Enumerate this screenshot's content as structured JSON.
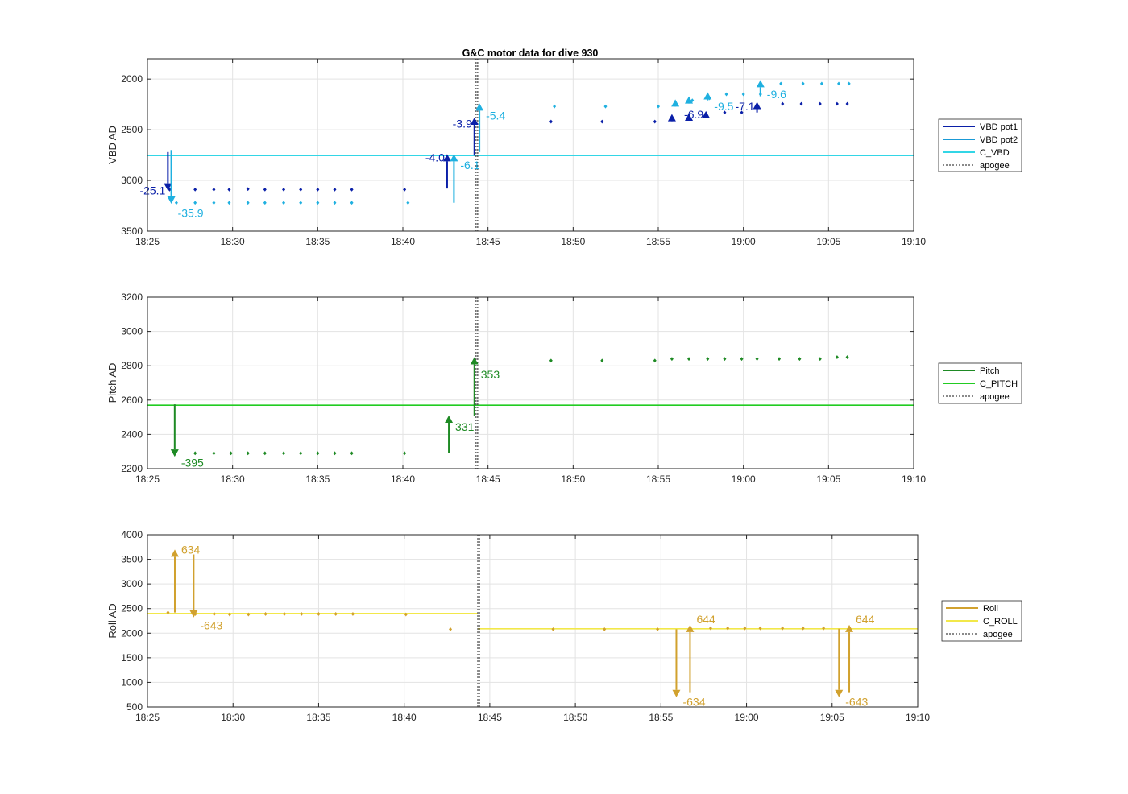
{
  "figure": {
    "title": "G&C motor data for dive 930"
  },
  "chart_data": [
    {
      "type": "scatter",
      "id": "vbd",
      "ylabel": "VBD AD",
      "ylim": [
        2000,
        3500
      ],
      "reverse_y": true,
      "y_extra_top": 1800,
      "yticks": [
        2000,
        2500,
        3000,
        3500
      ],
      "ytick_labels": [
        "2000",
        "2500",
        "3000",
        "3500"
      ],
      "xlim": [
        "18:25",
        "19:10"
      ],
      "xticks": [
        "18:25",
        "18:30",
        "18:35",
        "18:40",
        "18:45",
        "18:50",
        "18:55",
        "19:00",
        "19:05",
        "19:10"
      ],
      "grid": true,
      "legend": {
        "placement": "outside-right",
        "entries": [
          {
            "label": "VBD pot1",
            "color": "#0a1fa8",
            "style": "solid"
          },
          {
            "label": "VBD pot2",
            "color": "#1a9ad6",
            "style": "solid"
          },
          {
            "label": "C_VBD",
            "color": "#33d6e6",
            "style": "solid"
          },
          {
            "label": "apogee",
            "color": "#444444",
            "style": "dotted"
          }
        ]
      },
      "hlines": [
        {
          "y": 2755,
          "color": "#33d6e6"
        }
      ],
      "apogee_x": "18:44.3",
      "series": [
        {
          "name": "VBD pot1",
          "color": "#0a1fa8",
          "x": [
            "18:26.3",
            "18:27.8",
            "18:28.9",
            "18:29.8",
            "18:30.9",
            "18:31.9",
            "18:33.0",
            "18:34.0",
            "18:35.0",
            "18:36.0",
            "18:37.0",
            "18:40.1",
            "18:48.7",
            "18:51.7",
            "18:54.8",
            "18:55.8",
            "18:56.8",
            "18:57.8",
            "18:58.9",
            "18:59.9",
            "19:00.8",
            "19:02.3",
            "19:03.4",
            "19:04.5",
            "19:05.5",
            "19:06.1"
          ],
          "y": [
            3090,
            3090,
            3090,
            3090,
            3085,
            3090,
            3090,
            3090,
            3090,
            3090,
            3090,
            3090,
            2420,
            2420,
            2420,
            2380,
            2360,
            2340,
            2330,
            2330,
            2255,
            2245,
            2245,
            2245,
            2245,
            2245
          ]
        },
        {
          "name": "VBD pot2",
          "color": "#1fb0e0",
          "x": [
            "18:26.7",
            "18:27.8",
            "18:28.9",
            "18:29.8",
            "18:30.9",
            "18:31.9",
            "18:33.0",
            "18:34.0",
            "18:35.0",
            "18:36.0",
            "18:37.0",
            "18:40.3",
            "18:48.9",
            "18:51.9",
            "18:55.0",
            "18:56.0",
            "18:57.0",
            "18:58.0",
            "18:59.0",
            "19:00.0",
            "19:01.0",
            "19:02.2",
            "19:03.5",
            "19:04.6",
            "19:05.6",
            "19:06.2"
          ],
          "y": [
            3220,
            3220,
            3220,
            3220,
            3220,
            3220,
            3220,
            3220,
            3220,
            3220,
            3220,
            3220,
            2270,
            2270,
            2270,
            2230,
            2210,
            2190,
            2150,
            2150,
            2150,
            2045,
            2045,
            2045,
            2045,
            2045
          ]
        }
      ],
      "arrows": [
        {
          "x": "18:26.2",
          "from": 2720,
          "to": 3100,
          "color": "#0a1fa8",
          "label": "-25.1",
          "label_side": "left",
          "label_y": 3100
        },
        {
          "x": "18:26.4",
          "from": 2700,
          "to": 3230,
          "color": "#1fb0e0",
          "label": "-35.9",
          "label_side": "right",
          "label_y": 3320
        },
        {
          "x": "18:42.6",
          "from": 3080,
          "to": 2740,
          "color": "#0a1fa8",
          "label": "-4.0",
          "label_side": "left",
          "label_y": 2775
        },
        {
          "x": "18:43.0",
          "from": 3220,
          "to": 2740,
          "color": "#1fb0e0",
          "label": "-6.1",
          "label_side": "right",
          "label_y": 2850
        },
        {
          "x": "18:44.2",
          "from": 2755,
          "to": 2380,
          "color": "#0a1fa8",
          "label": "-3.9",
          "label_side": "left",
          "label_y": 2440
        },
        {
          "x": "18:44.5",
          "from": 2720,
          "to": 2240,
          "color": "#1fb0e0",
          "label": "-5.4",
          "label_side": "right",
          "label_y": 2360
        },
        {
          "x": "18:55.8",
          "from": 2385,
          "to": 2345,
          "color": "#0a1fa8",
          "label": "",
          "label_side": "none",
          "label_y": 0
        },
        {
          "x": "18:56.8",
          "from": 2385,
          "to": 2340,
          "color": "#0a1fa8",
          "label": "",
          "label_side": "none",
          "label_y": 0
        },
        {
          "x": "18:57.8",
          "from": 2360,
          "to": 2315,
          "color": "#0a1fa8",
          "label": "-6.9",
          "label_side": "left",
          "label_y": 2350
        },
        {
          "x": "19:00.8",
          "from": 2330,
          "to": 2225,
          "color": "#0a1fa8",
          "label": "-7.1",
          "label_side": "left",
          "label_y": 2270
        },
        {
          "x": "18:56.0",
          "from": 2250,
          "to": 2200,
          "color": "#1fb0e0",
          "label": "",
          "label_side": "none",
          "label_y": 0
        },
        {
          "x": "18:56.8",
          "from": 2235,
          "to": 2170,
          "color": "#1fb0e0",
          "label": "",
          "label_side": "none",
          "label_y": 0
        },
        {
          "x": "18:57.9",
          "from": 2210,
          "to": 2130,
          "color": "#1fb0e0",
          "label": "-9.5",
          "label_side": "right",
          "label_y": 2270
        },
        {
          "x": "19:01.0",
          "from": 2170,
          "to": 2010,
          "color": "#1fb0e0",
          "label": "-9.6",
          "label_side": "right",
          "label_y": 2150
        }
      ]
    },
    {
      "type": "scatter",
      "id": "pitch",
      "ylabel": "Pitch AD",
      "ylim": [
        2200,
        3200
      ],
      "reverse_y": false,
      "yticks": [
        2200,
        2400,
        2600,
        2800,
        3000,
        3200
      ],
      "ytick_labels": [
        "2200",
        "2400",
        "2600",
        "2800",
        "3000",
        "3200"
      ],
      "xlim": [
        "18:25",
        "19:10"
      ],
      "xticks": [
        "18:25",
        "18:30",
        "18:35",
        "18:40",
        "18:45",
        "18:50",
        "18:55",
        "19:00",
        "19:05",
        "19:10"
      ],
      "grid": true,
      "legend": {
        "placement": "outside-right",
        "entries": [
          {
            "label": "Pitch",
            "color": "#1e8a24",
            "style": "solid"
          },
          {
            "label": "C_PITCH",
            "color": "#22cc22",
            "style": "solid"
          },
          {
            "label": "apogee",
            "color": "#444444",
            "style": "dotted"
          }
        ]
      },
      "hlines": [
        {
          "y": 2570,
          "color": "#22cc22"
        }
      ],
      "apogee_x": "18:44.3",
      "series": [
        {
          "name": "Pitch",
          "color": "#1e8a24",
          "x": [
            "18:27.8",
            "18:28.9",
            "18:29.9",
            "18:30.9",
            "18:31.9",
            "18:33.0",
            "18:34.0",
            "18:35.0",
            "18:36.0",
            "18:37.0",
            "18:40.1",
            "18:48.7",
            "18:51.7",
            "18:54.8",
            "18:55.8",
            "18:56.8",
            "18:57.9",
            "18:58.9",
            "18:59.9",
            "19:00.8",
            "19:02.1",
            "19:03.3",
            "19:04.5",
            "19:05.5",
            "19:06.1"
          ],
          "y": [
            2290,
            2290,
            2290,
            2290,
            2290,
            2290,
            2290,
            2290,
            2290,
            2290,
            2290,
            2830,
            2830,
            2830,
            2840,
            2840,
            2840,
            2840,
            2840,
            2840,
            2840,
            2840,
            2840,
            2850,
            2850
          ]
        }
      ],
      "arrows": [
        {
          "x": "18:26.6",
          "from": 2575,
          "to": 2270,
          "color": "#1e8a24",
          "label": "-395",
          "label_side": "right",
          "label_y": 2235
        },
        {
          "x": "18:42.7",
          "from": 2290,
          "to": 2510,
          "color": "#1e8a24",
          "label": "331",
          "label_side": "right",
          "label_y": 2445
        },
        {
          "x": "18:44.2",
          "from": 2510,
          "to": 2850,
          "color": "#1e8a24",
          "label": "353",
          "label_side": "right",
          "label_y": 2750
        }
      ]
    },
    {
      "type": "scatter",
      "id": "roll",
      "ylabel": "Roll AD",
      "ylim": [
        500,
        4000
      ],
      "reverse_y": false,
      "yticks": [
        500,
        1000,
        1500,
        2000,
        2500,
        3000,
        3500,
        4000
      ],
      "ytick_labels": [
        "500",
        "1000",
        "1500",
        "2000",
        "2500",
        "3000",
        "3500",
        "4000"
      ],
      "xlim": [
        "18:25",
        "19:10"
      ],
      "xticks": [
        "18:25",
        "18:30",
        "18:35",
        "18:40",
        "18:45",
        "18:50",
        "18:55",
        "19:00",
        "19:05",
        "19:10"
      ],
      "grid": true,
      "legend": {
        "placement": "outside-right",
        "entries": [
          {
            "label": "Roll",
            "color": "#d1a12e",
            "style": "solid"
          },
          {
            "label": "C_ROLL",
            "color": "#f2e84a",
            "style": "solid"
          },
          {
            "label": "apogee",
            "color": "#444444",
            "style": "dotted"
          }
        ]
      },
      "hsegments": [
        {
          "x1": "18:25",
          "x2": "18:44.3",
          "y": 2400,
          "color": "#f2e84a"
        },
        {
          "x1": "18:44.3",
          "x2": "19:10",
          "y": 2090,
          "color": "#f2e84a"
        }
      ],
      "apogee_x": "18:44.3",
      "series": [
        {
          "name": "Roll",
          "color": "#d1a12e",
          "x": [
            "18:26.2",
            "18:27.8",
            "18:28.9",
            "18:29.8",
            "18:30.9",
            "18:31.9",
            "18:33.0",
            "18:34.0",
            "18:35.0",
            "18:36.0",
            "18:37.0",
            "18:40.1",
            "18:42.7",
            "18:48.7",
            "18:51.7",
            "18:54.8",
            "18:57.9",
            "18:58.9",
            "18:59.9",
            "19:00.8",
            "19:02.1",
            "19:03.3",
            "19:04.5"
          ],
          "y": [
            2420,
            2390,
            2390,
            2380,
            2380,
            2390,
            2390,
            2390,
            2390,
            2390,
            2390,
            2380,
            2080,
            2080,
            2080,
            2080,
            2100,
            2100,
            2100,
            2100,
            2100,
            2100,
            2100
          ]
        }
      ],
      "arrows": [
        {
          "x": "18:26.6",
          "from": 2420,
          "to": 3700,
          "color": "#d1a12e",
          "label": "634",
          "label_side": "right",
          "label_y": 3700
        },
        {
          "x": "18:27.7",
          "from": 3600,
          "to": 2320,
          "color": "#d1a12e",
          "label": "-643",
          "label_side": "right",
          "label_y": 2160
        },
        {
          "x": "18:55.9",
          "from": 2080,
          "to": 700,
          "color": "#d1a12e",
          "label": "-634",
          "label_side": "right",
          "label_y": 610
        },
        {
          "x": "18:56.7",
          "from": 800,
          "to": 2170,
          "color": "#d1a12e",
          "label": "644",
          "label_side": "right",
          "label_y": 2280
        },
        {
          "x": "19:05.4",
          "from": 2090,
          "to": 700,
          "color": "#d1a12e",
          "label": "-643",
          "label_side": "right",
          "label_y": 610
        },
        {
          "x": "19:06.0",
          "from": 800,
          "to": 2170,
          "color": "#d1a12e",
          "label": "644",
          "label_side": "right",
          "label_y": 2280
        }
      ]
    }
  ]
}
